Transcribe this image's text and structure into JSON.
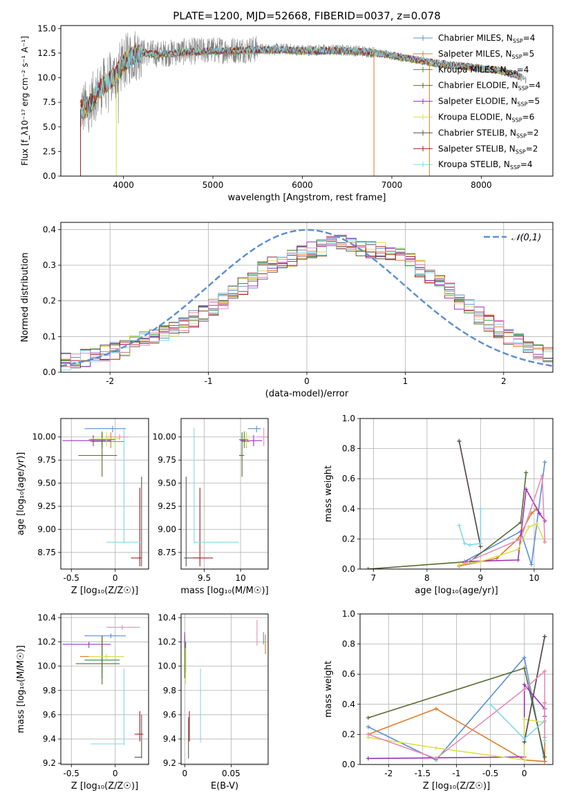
{
  "figure": {
    "title": "PLATE=1200, MJD=52668, FIBERID=0037, z=0.078"
  },
  "colors": {
    "grid": "#b0b0b0",
    "data": "#808080",
    "gaussian": "#5b8fd6"
  },
  "chart_data": [
    {
      "id": "spectrum",
      "type": "line",
      "xlabel": "wavelength [Angstrom, rest frame]",
      "ylabel": "Flux [f_λ10⁻¹⁷ erg cm⁻² s⁻¹ A⁻¹]",
      "xlim": [
        3300,
        8800
      ],
      "ylim": [
        0,
        15.3
      ],
      "xticks": [
        4000,
        5000,
        6000,
        7000,
        8000
      ],
      "yticks": [
        0.0,
        2.5,
        5.0,
        7.5,
        10.0,
        12.5,
        15.0
      ],
      "grid": false,
      "legend_position": "top-right",
      "legend": [
        {
          "label": "Chabrier MILES, N",
          "sub": "SSP",
          "suffix": "=4",
          "color": "#5b8fd6"
        },
        {
          "label": "Salpeter MILES, N",
          "sub": "SSP",
          "suffix": "=5",
          "color": "#e07b28"
        },
        {
          "label": "Kroupa MILES, N",
          "sub": "SSP",
          "suffix": "=4",
          "color": "#2b8f3a"
        },
        {
          "label": "Chabrier ELODIE, N",
          "sub": "SSP",
          "suffix": "=4",
          "color": "#556b2f"
        },
        {
          "label": "Salpeter ELODIE, N",
          "sub": "SSP",
          "suffix": "=5",
          "color": "#9b30b8"
        },
        {
          "label": "Kroupa ELODIE, N",
          "sub": "SSP",
          "suffix": "=6",
          "color": "#d8e04a"
        },
        {
          "label": "Chabrier STELIB, N",
          "sub": "SSP",
          "suffix": "=2",
          "color": "#555555"
        },
        {
          "label": "Salpeter STELIB, N",
          "sub": "SSP",
          "suffix": "=2",
          "color": "#a51c1c"
        },
        {
          "label": "Kroupa STELIB, N",
          "sub": "SSP",
          "suffix": "=4",
          "color": "#7fd8e8"
        }
      ],
      "continuum": {
        "x": [
          3520,
          3600,
          3700,
          3800,
          3900,
          4000,
          4100,
          4200,
          4400,
          4600,
          4800,
          5000,
          5200,
          5500,
          5800,
          6000,
          6200,
          6500,
          6800,
          7000,
          7200,
          7500,
          7800,
          8000,
          8200,
          8400,
          8500
        ],
        "y": [
          6.8,
          7.0,
          8.5,
          9.5,
          10.2,
          11.5,
          12.3,
          12.6,
          12.4,
          12.6,
          12.7,
          12.8,
          12.8,
          12.9,
          12.9,
          12.8,
          12.8,
          12.8,
          12.6,
          12.3,
          12.0,
          11.5,
          11.2,
          11.0,
          10.8,
          10.3,
          9.8
        ]
      }
    },
    {
      "id": "residuals",
      "type": "step",
      "xlabel": "(data-model)/error",
      "ylabel": "Normed distribution",
      "xlim": [
        -2.5,
        2.5
      ],
      "ylim": [
        0,
        0.42
      ],
      "xticks": [
        -2,
        -1,
        0,
        1,
        2
      ],
      "yticks": [
        0.0,
        0.1,
        0.2,
        0.3,
        0.4
      ],
      "grid": true,
      "legend_position": "top-right",
      "legend_label": "𝒩(0,1)",
      "bin_width": 0.1,
      "bins_start": -2.5,
      "base_hist": [
        0.03,
        0.035,
        0.04,
        0.045,
        0.055,
        0.06,
        0.07,
        0.08,
        0.09,
        0.1,
        0.11,
        0.12,
        0.135,
        0.15,
        0.165,
        0.18,
        0.2,
        0.22,
        0.24,
        0.26,
        0.285,
        0.3,
        0.31,
        0.32,
        0.33,
        0.345,
        0.35,
        0.36,
        0.36,
        0.355,
        0.35,
        0.345,
        0.34,
        0.335,
        0.33,
        0.31,
        0.29,
        0.27,
        0.25,
        0.23,
        0.2,
        0.18,
        0.16,
        0.14,
        0.12,
        0.1,
        0.09,
        0.07,
        0.06,
        0.05
      ]
    },
    {
      "id": "age-vs-Z",
      "type": "errorbar",
      "xlabel": "Z [log₁₀(Z/Z☉)]",
      "ylabel": "age  [log₁₀(age/yr)]",
      "xlim": [
        -0.62,
        0.38
      ],
      "ylim": [
        8.57,
        10.2
      ],
      "xticks": [
        -0.5,
        0.0
      ],
      "yticks": [
        8.75,
        9.0,
        9.25,
        9.5,
        9.75,
        10.0
      ],
      "grid": true,
      "points": [
        {
          "x": -0.03,
          "y": 10.09,
          "xlo": -0.35,
          "xhi": 0.12,
          "ylo": 10.05,
          "yhi": 10.12,
          "color": "#5b8fd6"
        },
        {
          "x": -0.05,
          "y": 9.95,
          "xlo": -0.28,
          "xhi": 0.1,
          "ylo": 9.88,
          "yhi": 10.05,
          "color": "#e07b28"
        },
        {
          "x": -0.15,
          "y": 9.97,
          "xlo": -0.3,
          "xhi": 0.0,
          "ylo": 9.88,
          "yhi": 10.06,
          "color": "#2b8f3a"
        },
        {
          "x": -0.15,
          "y": 9.8,
          "xlo": -0.42,
          "xhi": 0.02,
          "ylo": 9.57,
          "yhi": 10.05,
          "color": "#556b2f"
        },
        {
          "x": -0.25,
          "y": 9.96,
          "xlo": -0.6,
          "xhi": -0.05,
          "ylo": 9.9,
          "yhi": 10.02,
          "color": "#9b30b8"
        },
        {
          "x": -0.1,
          "y": 9.98,
          "xlo": -0.28,
          "xhi": 0.05,
          "ylo": 9.9,
          "yhi": 10.06,
          "color": "#d8e04a"
        },
        {
          "x": 0.3,
          "y": 8.69,
          "xlo": 0.26,
          "xhi": 0.3,
          "ylo": 8.6,
          "yhi": 9.57,
          "color": "#555555"
        },
        {
          "x": 0.28,
          "y": 8.69,
          "xlo": 0.18,
          "xhi": 0.3,
          "ylo": 8.6,
          "yhi": 9.45,
          "color": "#a51c1c"
        },
        {
          "x": 0.1,
          "y": 8.86,
          "xlo": -0.1,
          "xhi": 0.29,
          "ylo": 8.85,
          "yhi": 10.1,
          "color": "#7fd8e8"
        },
        {
          "x": 0.05,
          "y": 10.0,
          "xlo": -0.1,
          "xhi": 0.15,
          "ylo": 9.97,
          "yhi": 10.03,
          "color": "#e88ab8"
        }
      ]
    },
    {
      "id": "age-vs-mass",
      "type": "errorbar",
      "xlabel": "mass [log₁₀(M/M☉)]",
      "ylabel": "",
      "xlim": [
        9.18,
        10.38
      ],
      "ylim": [
        8.57,
        10.2
      ],
      "xticks": [
        9.5,
        10.0
      ],
      "yticks": [
        8.75,
        9.0,
        9.25,
        9.5,
        9.75,
        10.0
      ],
      "grid": true,
      "points": [
        {
          "x": 10.22,
          "y": 10.09,
          "xlo": 10.1,
          "xhi": 10.28,
          "ylo": 10.05,
          "yhi": 10.12,
          "color": "#5b8fd6"
        },
        {
          "x": 10.08,
          "y": 9.95,
          "xlo": 10.02,
          "xhi": 10.12,
          "ylo": 9.88,
          "yhi": 10.05,
          "color": "#e07b28"
        },
        {
          "x": 10.05,
          "y": 9.97,
          "xlo": 9.98,
          "xhi": 10.1,
          "ylo": 9.88,
          "yhi": 10.06,
          "color": "#2b8f3a"
        },
        {
          "x": 10.02,
          "y": 9.8,
          "xlo": 9.98,
          "xhi": 10.05,
          "ylo": 9.57,
          "yhi": 10.05,
          "color": "#556b2f"
        },
        {
          "x": 10.18,
          "y": 9.96,
          "xlo": 10.0,
          "xhi": 10.3,
          "ylo": 9.9,
          "yhi": 10.02,
          "color": "#9b30b8"
        },
        {
          "x": 10.08,
          "y": 9.98,
          "xlo": 10.02,
          "xhi": 10.12,
          "ylo": 9.9,
          "yhi": 10.06,
          "color": "#d8e04a"
        },
        {
          "x": 9.25,
          "y": 8.69,
          "xlo": 9.22,
          "xhi": 9.45,
          "ylo": 8.6,
          "yhi": 9.57,
          "color": "#555555"
        },
        {
          "x": 9.44,
          "y": 8.69,
          "xlo": 9.35,
          "xhi": 9.62,
          "ylo": 8.6,
          "yhi": 9.45,
          "color": "#a51c1c"
        },
        {
          "x": 9.36,
          "y": 8.86,
          "xlo": 9.36,
          "xhi": 9.98,
          "ylo": 8.85,
          "yhi": 10.1,
          "color": "#7fd8e8"
        },
        {
          "x": 10.32,
          "y": 10.0,
          "xlo": 10.22,
          "xhi": 10.38,
          "ylo": 9.9,
          "yhi": 10.1,
          "color": "#e88ab8"
        }
      ]
    },
    {
      "id": "mw-vs-age",
      "type": "line",
      "xlabel": "age  [log₁₀(age/yr)]",
      "ylabel": "mass weight",
      "xlim": [
        6.75,
        10.35
      ],
      "ylim": [
        0,
        1.0
      ],
      "xticks": [
        7,
        8,
        9,
        10
      ],
      "yticks": [
        0.0,
        0.2,
        0.4,
        0.6,
        0.8,
        1.0
      ],
      "grid": true,
      "series": [
        {
          "color": "#5b8fd6",
          "x": [
            8.7,
            9.75,
            9.95,
            10.2
          ],
          "y": [
            0.05,
            0.25,
            0.03,
            0.71
          ]
        },
        {
          "color": "#e07b28",
          "x": [
            8.6,
            9.3,
            9.7,
            9.95,
            10.05
          ],
          "y": [
            0.02,
            0.07,
            0.2,
            0.37,
            0.4
          ]
        },
        {
          "color": "#556b2f",
          "x": [
            6.9,
            8.8,
            9.75,
            9.85
          ],
          "y": [
            0.0,
            0.05,
            0.31,
            0.64
          ]
        },
        {
          "color": "#9b30b8",
          "x": [
            8.75,
            9.7,
            9.85,
            10.1,
            10.2
          ],
          "y": [
            0.05,
            0.06,
            0.53,
            0.37,
            0.32
          ]
        },
        {
          "color": "#d8e04a",
          "x": [
            8.6,
            9.0,
            9.7,
            9.9,
            10.05,
            10.2
          ],
          "y": [
            0.03,
            0.05,
            0.13,
            0.28,
            0.3,
            0.18
          ]
        },
        {
          "color": "#a51c1c",
          "x": [
            8.6,
            9.0
          ],
          "y": [
            0.85,
            0.15
          ]
        },
        {
          "color": "#555555",
          "x": [
            8.6,
            9.0
          ],
          "y": [
            0.85,
            0.15
          ]
        },
        {
          "color": "#7fd8e8",
          "x": [
            8.6,
            8.7,
            8.8,
            9.0,
            9.0
          ],
          "y": [
            0.29,
            0.17,
            0.16,
            0.17,
            0.4
          ]
        },
        {
          "color": "#e88ab8",
          "x": [
            8.7,
            9.75,
            10.15,
            10.2
          ],
          "y": [
            0.04,
            0.2,
            0.62,
            0.18
          ]
        }
      ]
    },
    {
      "id": "mass-vs-Z",
      "type": "errorbar",
      "xlabel": "Z [log₁₀(Z/Z☉)]",
      "ylabel": "mass [log₁₀(M/M☉)]",
      "xlim": [
        -0.62,
        0.38
      ],
      "ylim": [
        9.19,
        10.43
      ],
      "xticks": [
        -0.5,
        0.0
      ],
      "yticks": [
        9.2,
        9.4,
        9.6,
        9.8,
        10.0,
        10.2,
        10.4
      ],
      "grid": true,
      "points": [
        {
          "x": -0.05,
          "y": 10.25,
          "xlo": -0.35,
          "xhi": 0.12,
          "ylo": 10.23,
          "yhi": 10.27,
          "color": "#5b8fd6"
        },
        {
          "x": -0.1,
          "y": 10.08,
          "xlo": -0.4,
          "xhi": 0.1,
          "ylo": 10.05,
          "yhi": 10.1,
          "color": "#e07b28"
        },
        {
          "x": -0.15,
          "y": 10.05,
          "xlo": -0.35,
          "xhi": 0.05,
          "ylo": 9.9,
          "yhi": 10.25,
          "color": "#2b8f3a"
        },
        {
          "x": -0.15,
          "y": 10.02,
          "xlo": -0.45,
          "xhi": 0.05,
          "ylo": 9.85,
          "yhi": 10.25,
          "color": "#556b2f"
        },
        {
          "x": -0.3,
          "y": 10.18,
          "xlo": -0.6,
          "xhi": -0.05,
          "ylo": 10.15,
          "yhi": 10.2,
          "color": "#9b30b8"
        },
        {
          "x": -0.1,
          "y": 10.08,
          "xlo": -0.3,
          "xhi": 0.1,
          "ylo": 10.05,
          "yhi": 10.1,
          "color": "#d8e04a"
        },
        {
          "x": 0.3,
          "y": 9.25,
          "xlo": 0.22,
          "xhi": 0.3,
          "ylo": 9.24,
          "yhi": 9.6,
          "color": "#555555"
        },
        {
          "x": 0.28,
          "y": 9.44,
          "xlo": 0.22,
          "xhi": 0.32,
          "ylo": 9.38,
          "yhi": 9.63,
          "color": "#a51c1c"
        },
        {
          "x": 0.1,
          "y": 9.36,
          "xlo": -0.28,
          "xhi": 0.1,
          "ylo": 9.35,
          "yhi": 9.98,
          "color": "#7fd8e8"
        },
        {
          "x": 0.08,
          "y": 10.32,
          "xlo": -0.1,
          "xhi": 0.28,
          "ylo": 10.3,
          "yhi": 10.34,
          "color": "#e88ab8"
        }
      ]
    },
    {
      "id": "mass-vs-ebv",
      "type": "errorbar",
      "xlabel": "E(B-V)",
      "ylabel": "",
      "xlim": [
        -0.004,
        0.09
      ],
      "ylim": [
        9.19,
        10.43
      ],
      "xticks": [
        0.0,
        0.05
      ],
      "yticks": [
        9.2,
        9.4,
        9.6,
        9.8,
        10.0,
        10.2,
        10.4
      ],
      "grid": true,
      "points": [
        {
          "x": 0.085,
          "y": 10.25,
          "ylo": 10.18,
          "yhi": 10.28,
          "color": "#5b8fd6"
        },
        {
          "x": 0.087,
          "y": 10.18,
          "ylo": 10.1,
          "yhi": 10.26,
          "color": "#e07b28"
        },
        {
          "x": 0.001,
          "y": 10.05,
          "ylo": 9.95,
          "yhi": 10.2,
          "color": "#2b8f3a"
        },
        {
          "x": 0.0,
          "y": 10.08,
          "ylo": 9.9,
          "yhi": 10.25,
          "color": "#556b2f"
        },
        {
          "x": 0.0,
          "y": 10.2,
          "ylo": 10.15,
          "yhi": 10.28,
          "color": "#9b30b8"
        },
        {
          "x": 0.001,
          "y": 10.0,
          "ylo": 9.85,
          "yhi": 10.15,
          "color": "#d8e04a"
        },
        {
          "x": 0.004,
          "y": 9.4,
          "ylo": 9.24,
          "yhi": 9.58,
          "color": "#555555"
        },
        {
          "x": 0.005,
          "y": 9.45,
          "ylo": 9.38,
          "yhi": 9.63,
          "color": "#a51c1c"
        },
        {
          "x": 0.017,
          "y": 9.6,
          "ylo": 9.37,
          "yhi": 9.98,
          "color": "#7fd8e8"
        },
        {
          "x": 0.078,
          "y": 10.3,
          "ylo": 10.17,
          "yhi": 10.38,
          "color": "#e88ab8"
        }
      ]
    },
    {
      "id": "mw-vs-Z",
      "type": "line",
      "xlabel": "Z [log₁₀(Z/Z☉)]",
      "ylabel": "mass weight",
      "xlim": [
        -2.42,
        0.42
      ],
      "ylim": [
        0,
        1.0
      ],
      "xticks": [
        -2.0,
        -1.5,
        -1.0,
        -0.5,
        0.0
      ],
      "yticks": [
        0.0,
        0.2,
        0.4,
        0.6,
        0.8,
        1.0
      ],
      "grid": true,
      "series": [
        {
          "color": "#5b8fd6",
          "x": [
            -2.3,
            -1.3,
            0.0,
            0.3,
            0.3
          ],
          "y": [
            0.25,
            0.03,
            0.71,
            0.02,
            0.02
          ]
        },
        {
          "color": "#e07b28",
          "x": [
            -2.3,
            -1.3,
            0.0,
            0.3,
            0.3
          ],
          "y": [
            0.2,
            0.37,
            0.03,
            0.02,
            0.41
          ]
        },
        {
          "color": "#556b2f",
          "x": [
            -2.3,
            0.0,
            0.3
          ],
          "y": [
            0.31,
            0.64,
            0.05
          ]
        },
        {
          "color": "#9b30b8",
          "x": [
            -2.3,
            0.0,
            0.0,
            0.3,
            0.3
          ],
          "y": [
            0.04,
            0.05,
            0.53,
            0.37,
            0.32
          ]
        },
        {
          "color": "#d8e04a",
          "x": [
            -2.3,
            -1.3,
            0.0,
            0.0,
            0.3
          ],
          "y": [
            0.18,
            0.11,
            0.03,
            0.3,
            0.28
          ]
        },
        {
          "color": "#a51c1c",
          "x": [
            0.0,
            0.3
          ],
          "y": [
            0.15,
            0.85
          ]
        },
        {
          "color": "#555555",
          "x": [
            0.0,
            0.3
          ],
          "y": [
            0.15,
            0.85
          ]
        },
        {
          "color": "#7fd8e8",
          "x": [
            -0.5,
            0.0,
            0.3,
            0.3
          ],
          "y": [
            0.4,
            0.17,
            0.29,
            0.16
          ]
        },
        {
          "color": "#e88ab8",
          "x": [
            -2.3,
            -1.3,
            0.0,
            0.3,
            0.3
          ],
          "y": [
            0.2,
            0.04,
            0.5,
            0.62,
            0.18
          ]
        }
      ]
    }
  ]
}
